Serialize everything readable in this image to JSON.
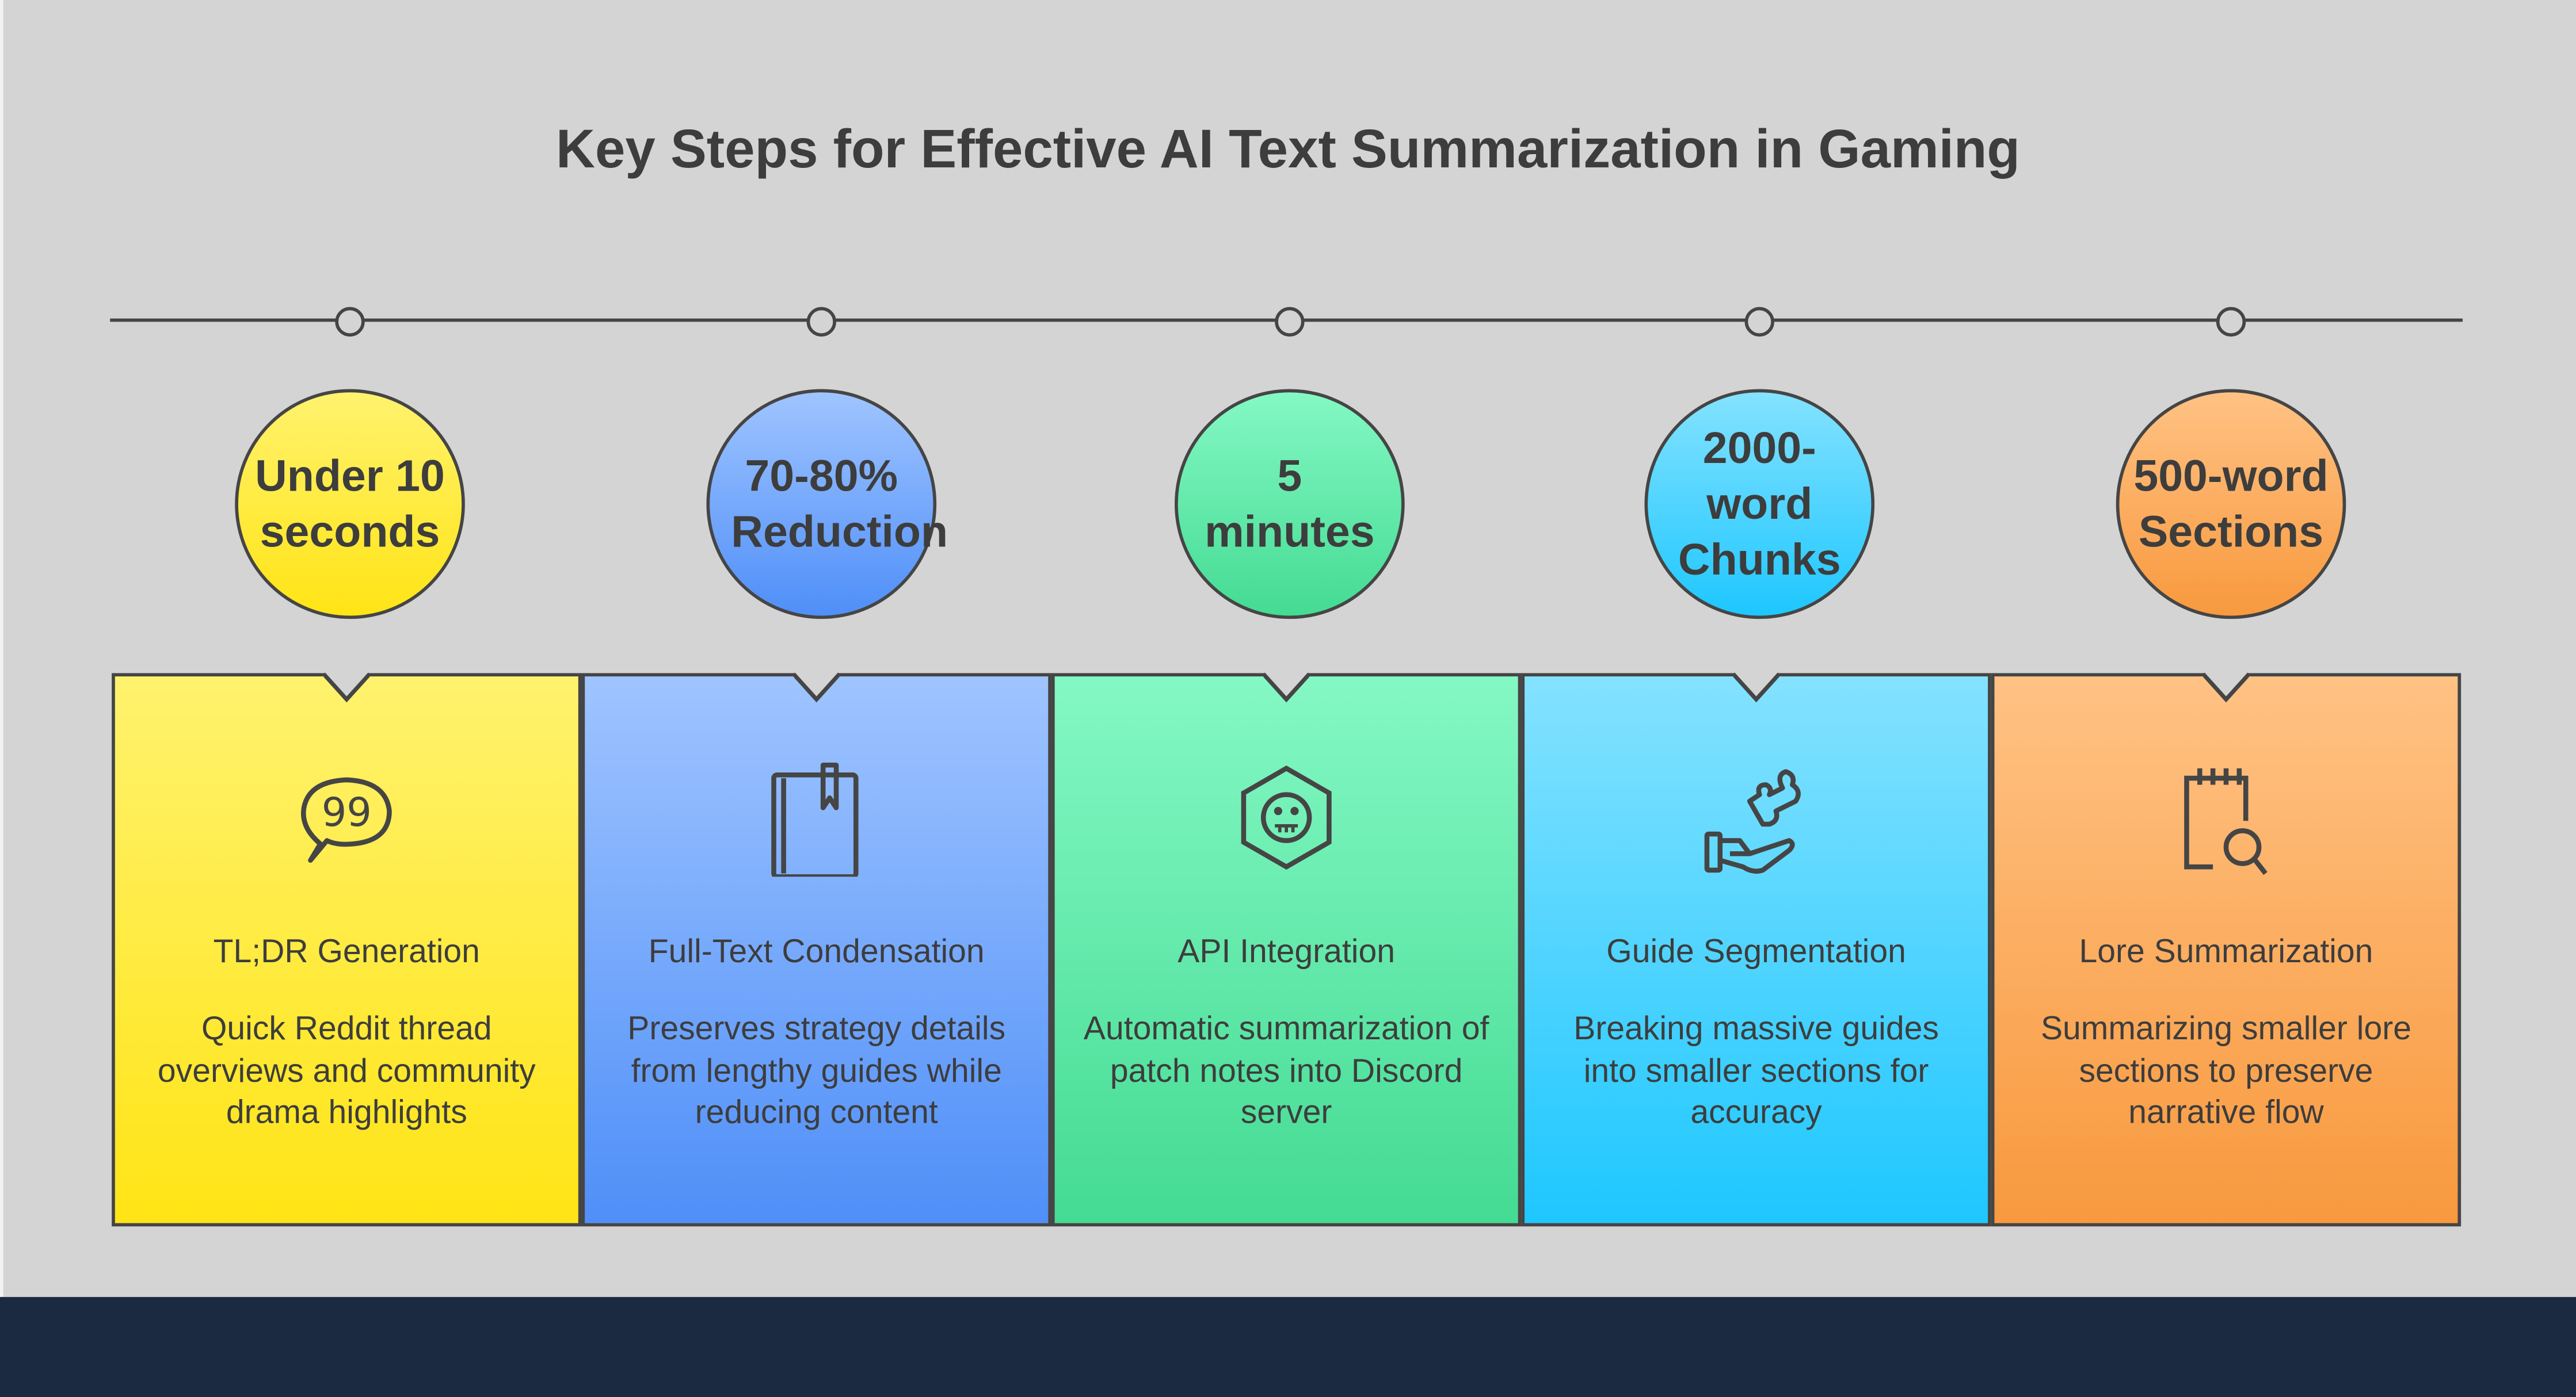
{
  "title": "Key Steps for Effective AI Text Summarization in Gaming",
  "steps": [
    {
      "metric": "Under 10 seconds",
      "heading": "TL;DR Generation",
      "description": "Quick Reddit thread overviews and community drama highlights",
      "icon": "speech-bubble-quote-icon",
      "colors": [
        "#fff26e",
        "#ffe415"
      ]
    },
    {
      "metric": "70-80% Reduction",
      "heading": "Full-Text Condensation",
      "description": "Preserves strategy details from lengthy guides while reducing content",
      "icon": "book-bookmark-icon",
      "colors": [
        "#9fc4ff",
        "#4f8ff8"
      ]
    },
    {
      "metric": "5 minutes",
      "heading": "API Integration",
      "description": "Automatic summarization of patch notes into Discord server",
      "icon": "robot-hexagon-icon",
      "colors": [
        "#84f8c4",
        "#44db93"
      ]
    },
    {
      "metric": "2000-word Chunks",
      "heading": "Guide Segmentation",
      "description": "Breaking massive guides into smaller sections for accuracy",
      "icon": "hand-puzzle-icon",
      "colors": [
        "#84e2ff",
        "#1ec7ff"
      ]
    },
    {
      "metric": "500-word Sections",
      "heading": "Lore Summarization",
      "description": "Summarizing smaller lore sections to preserve narrative flow",
      "icon": "notepad-search-icon",
      "colors": [
        "#ffc284",
        "#f8993e"
      ]
    }
  ]
}
